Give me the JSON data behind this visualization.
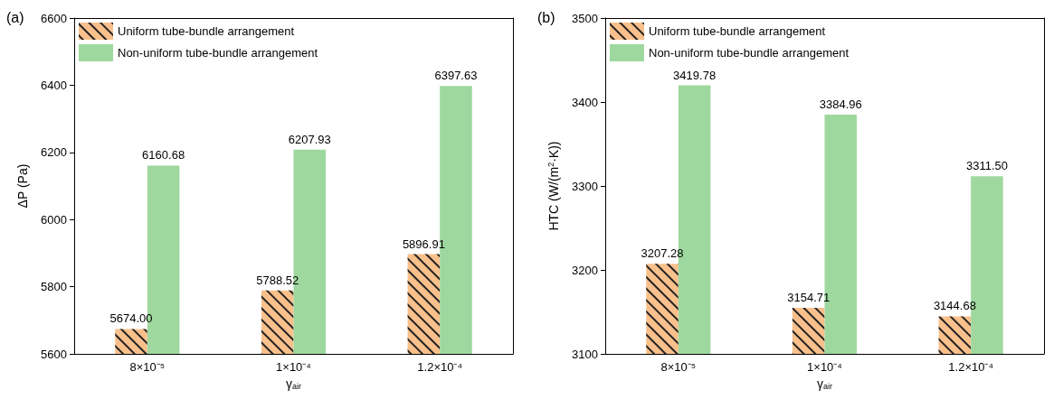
{
  "chart_data": [
    {
      "type": "bar",
      "title": "(a)",
      "xlabel": "γ$_{air}$",
      "ylabel": "ΔP (Pa)",
      "categories": [
        "8×10⁻⁵",
        "1×10⁻⁴",
        "1.2×10⁻⁴"
      ],
      "series": [
        {
          "name": "Uniform tube-bundle arrangement",
          "color": "#f9c08c",
          "values": [
            5674.0,
            5788.52,
            5896.91
          ],
          "value_labels": [
            "5674.00",
            "5788.52",
            "5896.91"
          ]
        },
        {
          "name": "Non-uniform tube-bundle arrangement",
          "color": "#9fd89f",
          "values": [
            6160.68,
            6207.93,
            6397.63
          ],
          "value_labels": [
            "6160.68",
            "6207.93",
            "6397.63"
          ]
        }
      ],
      "ylim": [
        5600,
        6600
      ],
      "yticks": [
        5600,
        5800,
        6000,
        6200,
        6400,
        6600
      ],
      "legend": "top left",
      "grid": false
    },
    {
      "type": "bar",
      "title": "(b)",
      "xlabel": "γ$_{air}$",
      "ylabel": "HTC (W/(m$^{2}$·K))",
      "categories": [
        "8×10⁻⁵",
        "1×10⁻⁴",
        "1.2×10⁻⁴"
      ],
      "series": [
        {
          "name": "Uniform tube-bundle arrangement",
          "color": "#f9c08c",
          "values": [
            3207.28,
            3154.71,
            3144.68
          ],
          "value_labels": [
            "3207.28",
            "3154.71",
            "3144.68"
          ]
        },
        {
          "name": "Non-uniform tube-bundle arrangement",
          "color": "#9fd89f",
          "values": [
            3419.78,
            3384.96,
            3311.5
          ],
          "value_labels": [
            "3419.78",
            "3384.96",
            "3311.50"
          ]
        }
      ],
      "ylim": [
        3100,
        3500
      ],
      "yticks": [
        3100,
        3200,
        3300,
        3400,
        3500
      ],
      "legend": "top left",
      "grid": false
    }
  ]
}
